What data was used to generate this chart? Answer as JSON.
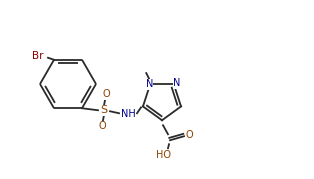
{
  "bg_color": "#ffffff",
  "line_color": "#2a2a2a",
  "atom_colors": {
    "Br": "#8B0000",
    "N": "#00008B",
    "O": "#8B4000",
    "S": "#8B4000",
    "C": "#2a2a2a"
  },
  "lw": 1.3,
  "fs": 7.0,
  "figsize": [
    3.14,
    1.79
  ],
  "dpi": 100
}
